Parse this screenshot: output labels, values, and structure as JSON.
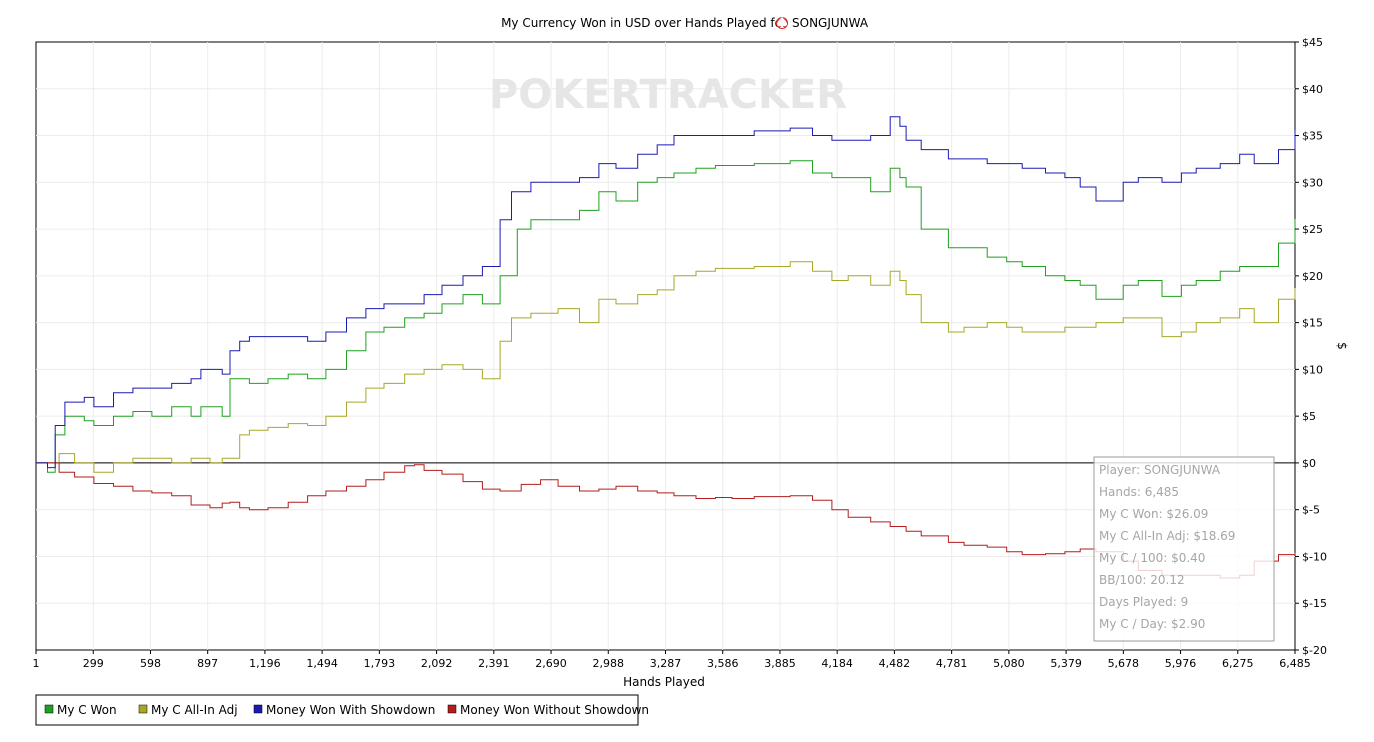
{
  "chart_data": {
    "type": "line",
    "title": "My Currency Won in USD over Hands Played for",
    "player": "SONGJUNWA",
    "watermark": "POKERTRACKER",
    "xlabel": "Hands Played",
    "ylabel": "$",
    "xlim": [
      1,
      6485
    ],
    "ylim": [
      -20,
      45
    ],
    "x_ticks": [
      "1",
      "299",
      "598",
      "897",
      "1,196",
      "1,494",
      "1,793",
      "2,092",
      "2,391",
      "2,690",
      "2,988",
      "3,287",
      "3,586",
      "3,885",
      "4,184",
      "4,482",
      "4,781",
      "5,080",
      "5,379",
      "5,678",
      "5,976",
      "6,275",
      "6,485"
    ],
    "y_ticks": [
      "$45",
      "$40",
      "$35",
      "$30",
      "$25",
      "$20",
      "$15",
      "$10",
      "$5",
      "$0",
      "$-5",
      "$-10",
      "$-15",
      "$-20"
    ],
    "grid": true,
    "legend_position": "bottom-left",
    "series": [
      {
        "name": "My C Won",
        "color": "#1fa01f",
        "points": [
          [
            1,
            0
          ],
          [
            60,
            -1
          ],
          [
            100,
            3
          ],
          [
            150,
            5
          ],
          [
            250,
            4.5
          ],
          [
            299,
            4
          ],
          [
            400,
            5
          ],
          [
            500,
            5.5
          ],
          [
            598,
            5
          ],
          [
            700,
            6
          ],
          [
            800,
            5
          ],
          [
            850,
            6
          ],
          [
            897,
            6
          ],
          [
            960,
            5
          ],
          [
            1000,
            9
          ],
          [
            1100,
            8.5
          ],
          [
            1196,
            9
          ],
          [
            1300,
            9.5
          ],
          [
            1400,
            9
          ],
          [
            1494,
            10
          ],
          [
            1600,
            12
          ],
          [
            1700,
            14
          ],
          [
            1793,
            14.5
          ],
          [
            1900,
            15.5
          ],
          [
            2000,
            16
          ],
          [
            2092,
            17
          ],
          [
            2200,
            18
          ],
          [
            2300,
            17
          ],
          [
            2391,
            20
          ],
          [
            2480,
            25
          ],
          [
            2550,
            26
          ],
          [
            2690,
            26
          ],
          [
            2800,
            27
          ],
          [
            2900,
            29
          ],
          [
            2988,
            28
          ],
          [
            3100,
            30
          ],
          [
            3200,
            30.5
          ],
          [
            3287,
            31
          ],
          [
            3400,
            31.5
          ],
          [
            3500,
            31.8
          ],
          [
            3586,
            31.8
          ],
          [
            3700,
            32
          ],
          [
            3885,
            32.3
          ],
          [
            4000,
            31
          ],
          [
            4100,
            30.5
          ],
          [
            4184,
            30.5
          ],
          [
            4300,
            29
          ],
          [
            4400,
            31.5
          ],
          [
            4450,
            30.5
          ],
          [
            4482,
            29.5
          ],
          [
            4560,
            25
          ],
          [
            4700,
            23
          ],
          [
            4781,
            23
          ],
          [
            4900,
            22
          ],
          [
            5000,
            21.5
          ],
          [
            5080,
            21
          ],
          [
            5200,
            20
          ],
          [
            5300,
            19.5
          ],
          [
            5379,
            19
          ],
          [
            5460,
            17.5
          ],
          [
            5600,
            19
          ],
          [
            5678,
            19.5
          ],
          [
            5800,
            17.8
          ],
          [
            5900,
            19
          ],
          [
            5976,
            19.5
          ],
          [
            6100,
            20.5
          ],
          [
            6200,
            21
          ],
          [
            6275,
            21
          ],
          [
            6400,
            23.5
          ],
          [
            6485,
            26.09
          ]
        ]
      },
      {
        "name": "My C All-In Adj",
        "color": "#a8a826",
        "points": [
          [
            1,
            0
          ],
          [
            60,
            0
          ],
          [
            120,
            1
          ],
          [
            200,
            0
          ],
          [
            299,
            -1
          ],
          [
            400,
            0
          ],
          [
            500,
            0.5
          ],
          [
            598,
            0.5
          ],
          [
            700,
            0
          ],
          [
            800,
            0.5
          ],
          [
            897,
            0
          ],
          [
            960,
            0.5
          ],
          [
            1050,
            3
          ],
          [
            1100,
            3.5
          ],
          [
            1196,
            3.8
          ],
          [
            1300,
            4.2
          ],
          [
            1400,
            4
          ],
          [
            1494,
            5
          ],
          [
            1600,
            6.5
          ],
          [
            1700,
            8
          ],
          [
            1793,
            8.5
          ],
          [
            1900,
            9.5
          ],
          [
            2000,
            10
          ],
          [
            2092,
            10.5
          ],
          [
            2200,
            10
          ],
          [
            2300,
            9
          ],
          [
            2391,
            13
          ],
          [
            2450,
            15.5
          ],
          [
            2550,
            16
          ],
          [
            2690,
            16.5
          ],
          [
            2800,
            15
          ],
          [
            2900,
            17.5
          ],
          [
            2988,
            17
          ],
          [
            3100,
            18
          ],
          [
            3200,
            18.5
          ],
          [
            3287,
            20
          ],
          [
            3400,
            20.5
          ],
          [
            3500,
            20.8
          ],
          [
            3586,
            20.8
          ],
          [
            3700,
            21
          ],
          [
            3885,
            21.5
          ],
          [
            4000,
            20.5
          ],
          [
            4100,
            19.5
          ],
          [
            4184,
            20
          ],
          [
            4300,
            19
          ],
          [
            4400,
            20.5
          ],
          [
            4450,
            19.5
          ],
          [
            4482,
            18
          ],
          [
            4560,
            15
          ],
          [
            4700,
            14
          ],
          [
            4781,
            14.5
          ],
          [
            4900,
            15
          ],
          [
            5000,
            14.5
          ],
          [
            5080,
            14
          ],
          [
            5200,
            14
          ],
          [
            5300,
            14.5
          ],
          [
            5379,
            14.5
          ],
          [
            5460,
            15
          ],
          [
            5600,
            15.5
          ],
          [
            5678,
            15.5
          ],
          [
            5800,
            13.5
          ],
          [
            5900,
            14
          ],
          [
            5976,
            15
          ],
          [
            6100,
            15.5
          ],
          [
            6200,
            16.5
          ],
          [
            6275,
            15
          ],
          [
            6400,
            17.5
          ],
          [
            6485,
            18.69
          ]
        ]
      },
      {
        "name": "Money Won With Showdown",
        "color": "#1b1bb4",
        "points": [
          [
            1,
            0
          ],
          [
            60,
            -0.5
          ],
          [
            100,
            4
          ],
          [
            150,
            6.5
          ],
          [
            250,
            7
          ],
          [
            299,
            6
          ],
          [
            400,
            7.5
          ],
          [
            500,
            8
          ],
          [
            598,
            8
          ],
          [
            700,
            8.5
          ],
          [
            800,
            9
          ],
          [
            850,
            10
          ],
          [
            897,
            10
          ],
          [
            960,
            9.5
          ],
          [
            1000,
            12
          ],
          [
            1050,
            13
          ],
          [
            1100,
            13.5
          ],
          [
            1196,
            13.5
          ],
          [
            1300,
            13.5
          ],
          [
            1400,
            13
          ],
          [
            1494,
            14
          ],
          [
            1600,
            15.5
          ],
          [
            1700,
            16.5
          ],
          [
            1793,
            17
          ],
          [
            1900,
            17
          ],
          [
            2000,
            18
          ],
          [
            2092,
            19
          ],
          [
            2200,
            20
          ],
          [
            2300,
            21
          ],
          [
            2391,
            26
          ],
          [
            2450,
            29
          ],
          [
            2550,
            30
          ],
          [
            2690,
            30
          ],
          [
            2800,
            30.5
          ],
          [
            2900,
            32
          ],
          [
            2988,
            31.5
          ],
          [
            3100,
            33
          ],
          [
            3200,
            34
          ],
          [
            3287,
            35
          ],
          [
            3400,
            35
          ],
          [
            3500,
            35
          ],
          [
            3586,
            35
          ],
          [
            3700,
            35.5
          ],
          [
            3885,
            35.8
          ],
          [
            4000,
            35
          ],
          [
            4100,
            34.5
          ],
          [
            4184,
            34.5
          ],
          [
            4300,
            35
          ],
          [
            4400,
            37
          ],
          [
            4450,
            36
          ],
          [
            4482,
            34.5
          ],
          [
            4560,
            33.5
          ],
          [
            4700,
            32.5
          ],
          [
            4781,
            32.5
          ],
          [
            4900,
            32
          ],
          [
            5000,
            32
          ],
          [
            5080,
            31.5
          ],
          [
            5200,
            31
          ],
          [
            5300,
            30.5
          ],
          [
            5379,
            29.5
          ],
          [
            5460,
            28
          ],
          [
            5600,
            30
          ],
          [
            5678,
            30.5
          ],
          [
            5800,
            30
          ],
          [
            5900,
            31
          ],
          [
            5976,
            31.5
          ],
          [
            6100,
            32
          ],
          [
            6200,
            33
          ],
          [
            6275,
            32
          ],
          [
            6400,
            33.5
          ],
          [
            6485,
            35.6
          ]
        ]
      },
      {
        "name": "Money Won Without Showdown",
        "color": "#b31d1d",
        "points": [
          [
            1,
            0
          ],
          [
            60,
            0
          ],
          [
            120,
            -1
          ],
          [
            200,
            -1.5
          ],
          [
            299,
            -2.2
          ],
          [
            400,
            -2.5
          ],
          [
            500,
            -3
          ],
          [
            598,
            -3.2
          ],
          [
            700,
            -3.5
          ],
          [
            800,
            -4.5
          ],
          [
            897,
            -4.8
          ],
          [
            960,
            -4.3
          ],
          [
            1000,
            -4.2
          ],
          [
            1050,
            -4.8
          ],
          [
            1100,
            -5
          ],
          [
            1196,
            -4.8
          ],
          [
            1300,
            -4.2
          ],
          [
            1400,
            -3.5
          ],
          [
            1494,
            -3
          ],
          [
            1600,
            -2.5
          ],
          [
            1700,
            -1.8
          ],
          [
            1793,
            -1
          ],
          [
            1900,
            -0.3
          ],
          [
            1950,
            -0.2
          ],
          [
            2000,
            -0.8
          ],
          [
            2092,
            -1.2
          ],
          [
            2200,
            -2
          ],
          [
            2300,
            -2.8
          ],
          [
            2391,
            -3
          ],
          [
            2500,
            -2.3
          ],
          [
            2600,
            -1.8
          ],
          [
            2690,
            -2.5
          ],
          [
            2800,
            -3
          ],
          [
            2900,
            -2.8
          ],
          [
            2988,
            -2.5
          ],
          [
            3100,
            -3
          ],
          [
            3200,
            -3.2
          ],
          [
            3287,
            -3.5
          ],
          [
            3400,
            -3.8
          ],
          [
            3500,
            -3.7
          ],
          [
            3586,
            -3.8
          ],
          [
            3700,
            -3.6
          ],
          [
            3885,
            -3.5
          ],
          [
            4000,
            -4
          ],
          [
            4100,
            -5
          ],
          [
            4184,
            -5.8
          ],
          [
            4300,
            -6.3
          ],
          [
            4400,
            -6.8
          ],
          [
            4482,
            -7.3
          ],
          [
            4560,
            -7.8
          ],
          [
            4700,
            -8.5
          ],
          [
            4781,
            -8.8
          ],
          [
            4900,
            -9
          ],
          [
            5000,
            -9.5
          ],
          [
            5080,
            -9.8
          ],
          [
            5200,
            -9.7
          ],
          [
            5300,
            -9.5
          ],
          [
            5379,
            -9.2
          ],
          [
            5460,
            -9.5
          ],
          [
            5600,
            -10.5
          ],
          [
            5678,
            -11.5
          ],
          [
            5800,
            -12
          ],
          [
            5900,
            -12
          ],
          [
            5976,
            -12
          ],
          [
            6100,
            -12.3
          ],
          [
            6200,
            -12
          ],
          [
            6275,
            -10.5
          ],
          [
            6400,
            -9.8
          ],
          [
            6485,
            -9.6
          ]
        ]
      }
    ],
    "tooltip": [
      "Player: SONGJUNWA",
      "Hands: 6,485",
      "My C Won: $26.09",
      "My C All-In Adj: $18.69",
      "My C / 100: $0.40",
      "BB/100: 20.12",
      "Days Played: 9",
      "My C / Day: $2.90"
    ]
  }
}
